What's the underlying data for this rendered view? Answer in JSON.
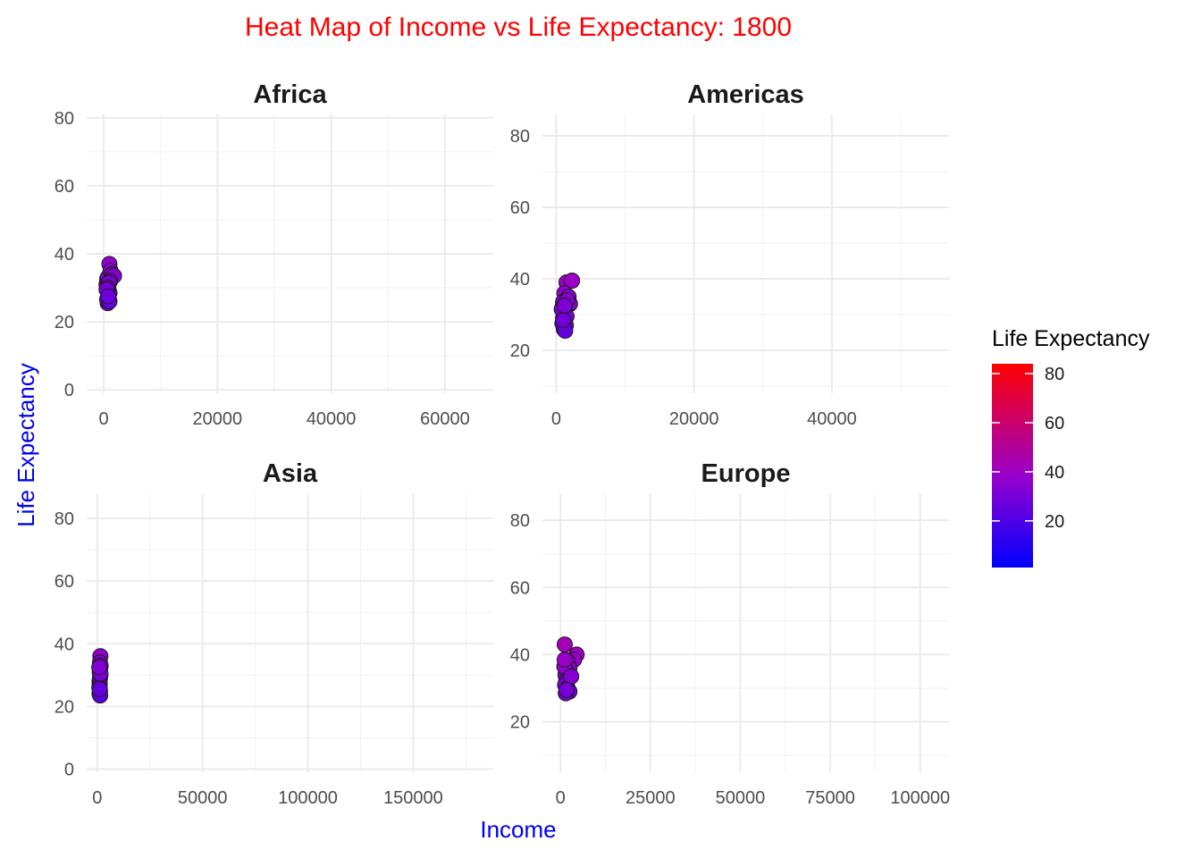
{
  "chart_data": {
    "type": "scatter",
    "title": "Heat Map of Income vs Life Expectancy: 1800",
    "xlabel": "Income",
    "ylabel": "Life Expectancy",
    "legend": {
      "title": "Life Expectancy",
      "placement": "right",
      "ticks": [
        "20",
        "40",
        "60",
        "80"
      ],
      "tick_values": [
        20,
        40,
        60,
        80
      ],
      "range": [
        1,
        84
      ],
      "color_low": "#0000ff",
      "color_mid": "#9900cc",
      "color_high": "#ff0000"
    },
    "grid": true,
    "panels": [
      {
        "name": "Africa",
        "xlim": [
          -3000,
          68500
        ],
        "ylim": [
          -1,
          81
        ],
        "xticks": [
          0,
          20000,
          40000,
          60000
        ],
        "xtick_labels": [
          "0",
          "20000",
          "40000",
          "60000"
        ],
        "yticks": [
          0,
          20,
          40,
          60,
          80
        ],
        "ytick_labels": [
          "0",
          "20",
          "40",
          "60",
          "80"
        ],
        "points": [
          [
            500,
            31.0
          ],
          [
            600,
            32.5
          ],
          [
            700,
            33.0
          ],
          [
            800,
            30.5
          ],
          [
            900,
            29.0
          ],
          [
            1000,
            28.5
          ],
          [
            700,
            25.5
          ],
          [
            600,
            26.5
          ],
          [
            1000,
            37.0
          ],
          [
            1200,
            35.0
          ],
          [
            1500,
            34.0
          ],
          [
            1800,
            33.5
          ],
          [
            1100,
            32.0
          ],
          [
            900,
            31.5
          ],
          [
            700,
            30.0
          ],
          [
            500,
            29.5
          ],
          [
            1000,
            26.0
          ],
          [
            800,
            27.5
          ]
        ]
      },
      {
        "name": "Americas",
        "xlim": [
          -2000,
          57000
        ],
        "ylim": [
          8,
          86
        ],
        "xticks": [
          0,
          20000,
          40000
        ],
        "xtick_labels": [
          "0",
          "20000",
          "40000"
        ],
        "yticks": [
          20,
          40,
          60,
          80
        ],
        "ytick_labels": [
          "20",
          "40",
          "60",
          "80"
        ],
        "points": [
          [
            1500,
            39.0
          ],
          [
            2300,
            39.5
          ],
          [
            1200,
            36.0
          ],
          [
            1800,
            35.0
          ],
          [
            2000,
            33.0
          ],
          [
            1000,
            33.5
          ],
          [
            900,
            32.0
          ],
          [
            1300,
            31.0
          ],
          [
            1100,
            30.0
          ],
          [
            1000,
            29.0
          ],
          [
            1200,
            28.0
          ],
          [
            1400,
            27.0
          ],
          [
            1100,
            26.0
          ],
          [
            900,
            27.5
          ],
          [
            1500,
            29.5
          ],
          [
            800,
            31.5
          ],
          [
            1300,
            25.5
          ],
          [
            1000,
            28.5
          ],
          [
            1600,
            34.0
          ],
          [
            1200,
            32.5
          ]
        ]
      },
      {
        "name": "Asia",
        "xlim": [
          -5000,
          188000
        ],
        "ylim": [
          -1,
          88
        ],
        "xticks": [
          0,
          50000,
          100000,
          150000
        ],
        "xtick_labels": [
          "0",
          "50000",
          "100000",
          "150000"
        ],
        "yticks": [
          0,
          20,
          40,
          60,
          80
        ],
        "ytick_labels": [
          "0",
          "20",
          "40",
          "60",
          "80"
        ],
        "points": [
          [
            1500,
            36.0
          ],
          [
            1300,
            34.0
          ],
          [
            1600,
            33.0
          ],
          [
            1400,
            32.0
          ],
          [
            1200,
            31.0
          ],
          [
            1500,
            30.0
          ],
          [
            1300,
            29.0
          ],
          [
            1100,
            28.0
          ],
          [
            1200,
            27.0
          ],
          [
            1000,
            26.0
          ],
          [
            1300,
            25.0
          ],
          [
            1100,
            24.0
          ],
          [
            1400,
            23.5
          ],
          [
            1200,
            25.5
          ],
          [
            1500,
            30.5
          ],
          [
            1000,
            32.5
          ]
        ]
      },
      {
        "name": "Europe",
        "xlim": [
          -5000,
          108000
        ],
        "ylim": [
          5,
          88
        ],
        "xticks": [
          0,
          25000,
          50000,
          75000,
          100000
        ],
        "xtick_labels": [
          "0",
          "25000",
          "50000",
          "75000",
          "100000"
        ],
        "yticks": [
          20,
          40,
          60,
          80
        ],
        "ytick_labels": [
          "20",
          "40",
          "60",
          "80"
        ],
        "points": [
          [
            1200,
            43.0
          ],
          [
            4500,
            40.0
          ],
          [
            3800,
            38.5
          ],
          [
            2000,
            38.0
          ],
          [
            1500,
            37.0
          ],
          [
            2500,
            36.0
          ],
          [
            1800,
            35.0
          ],
          [
            1400,
            34.0
          ],
          [
            2200,
            33.0
          ],
          [
            1600,
            32.0
          ],
          [
            1300,
            31.0
          ],
          [
            2000,
            30.0
          ],
          [
            2500,
            29.0
          ],
          [
            1500,
            28.5
          ],
          [
            1100,
            36.5
          ],
          [
            3000,
            33.5
          ],
          [
            1700,
            29.5
          ],
          [
            1200,
            38.5
          ]
        ]
      }
    ]
  }
}
